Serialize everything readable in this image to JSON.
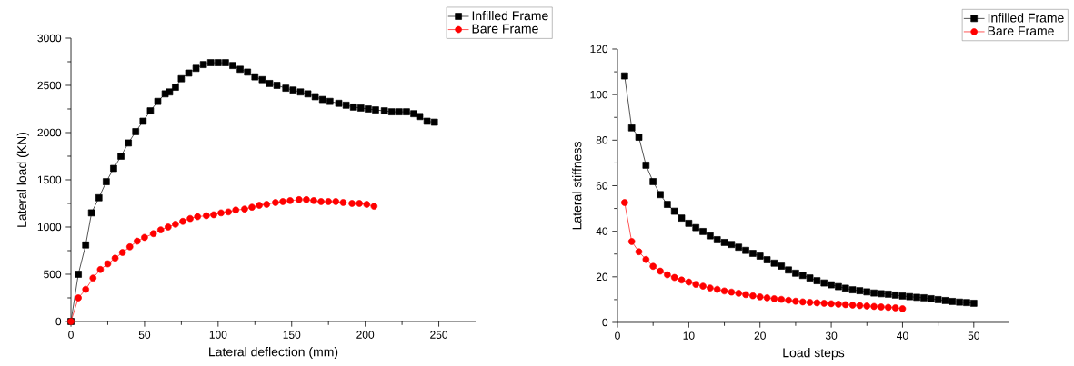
{
  "chart_data": [
    {
      "type": "line",
      "xlabel": "Lateral deflection (mm)",
      "ylabel": "Lateral load (KN)",
      "xlim": [
        0,
        275
      ],
      "ylim": [
        0,
        3000
      ],
      "xticks": [
        0,
        50,
        100,
        150,
        200,
        250
      ],
      "yticks": [
        0,
        500,
        1000,
        1500,
        2000,
        2500,
        3000
      ],
      "legend": "top right",
      "grid": false,
      "series": [
        {
          "name": "Infilled Frame",
          "color": "#000000",
          "marker": "square",
          "x": [
            0,
            5,
            10,
            14,
            19,
            24,
            29,
            34,
            39,
            44,
            49,
            54,
            59,
            64,
            67,
            71,
            75,
            80,
            85,
            90,
            95,
            100,
            105,
            110,
            115,
            120,
            125,
            130,
            135,
            140,
            146,
            151,
            156,
            161,
            166,
            171,
            176,
            182,
            187,
            192,
            197,
            202,
            207,
            213,
            218,
            223,
            228,
            233,
            237,
            242,
            247
          ],
          "values": [
            0,
            500,
            810,
            1150,
            1310,
            1480,
            1620,
            1750,
            1890,
            2010,
            2120,
            2230,
            2330,
            2410,
            2430,
            2480,
            2570,
            2630,
            2680,
            2720,
            2740,
            2740,
            2740,
            2710,
            2670,
            2640,
            2590,
            2560,
            2520,
            2500,
            2470,
            2450,
            2430,
            2410,
            2380,
            2350,
            2330,
            2310,
            2290,
            2270,
            2260,
            2250,
            2240,
            2230,
            2220,
            2220,
            2220,
            2200,
            2170,
            2120,
            2110
          ]
        },
        {
          "name": "Bare Frame",
          "color": "#ff0000",
          "marker": "circle",
          "x": [
            0,
            5,
            10,
            15,
            20,
            25,
            30,
            35,
            40,
            45,
            50,
            56,
            61,
            66,
            71,
            76,
            81,
            86,
            92,
            97,
            102,
            107,
            112,
            118,
            123,
            128,
            133,
            139,
            144,
            149,
            155,
            160,
            165,
            170,
            175,
            180,
            185,
            191,
            196,
            201,
            206
          ],
          "values": [
            0,
            250,
            340,
            460,
            550,
            610,
            670,
            730,
            790,
            850,
            890,
            930,
            970,
            1000,
            1030,
            1060,
            1090,
            1110,
            1120,
            1130,
            1150,
            1160,
            1180,
            1190,
            1210,
            1230,
            1240,
            1260,
            1270,
            1280,
            1290,
            1290,
            1280,
            1270,
            1270,
            1270,
            1260,
            1250,
            1250,
            1240,
            1220
          ]
        }
      ]
    },
    {
      "type": "line",
      "xlabel": "Load steps",
      "ylabel": "Lateral stiffness",
      "xlim": [
        0,
        55
      ],
      "ylim": [
        0,
        120
      ],
      "xticks": [
        0,
        10,
        20,
        30,
        40,
        50
      ],
      "yticks": [
        0,
        20,
        40,
        60,
        80,
        100,
        120
      ],
      "legend": "top right",
      "grid": false,
      "series": [
        {
          "name": "Infilled Frame",
          "color": "#000000",
          "marker": "square",
          "x": [
            1,
            2,
            3,
            4,
            5,
            6,
            7,
            8,
            9,
            10,
            11,
            12,
            13,
            14,
            15,
            16,
            17,
            18,
            19,
            20,
            21,
            22,
            23,
            24,
            25,
            26,
            27,
            28,
            29,
            30,
            31,
            32,
            33,
            34,
            35,
            36,
            37,
            38,
            39,
            40,
            41,
            42,
            43,
            44,
            45,
            46,
            47,
            48,
            49,
            50
          ],
          "values": [
            108.2,
            85.4,
            81.3,
            69,
            61.8,
            56.1,
            51.8,
            48.8,
            45.8,
            43.5,
            41.6,
            39.9,
            38,
            36.3,
            35.1,
            34.2,
            33,
            31.6,
            30.3,
            29.1,
            27.5,
            26,
            24.7,
            23,
            21.6,
            20.6,
            19.5,
            18.3,
            17.3,
            16.5,
            15.7,
            15,
            14.3,
            13.9,
            13.4,
            12.9,
            12.6,
            12.4,
            12,
            11.6,
            11.3,
            11,
            10.8,
            10.4,
            10,
            9.6,
            9.2,
            8.9,
            8.7,
            8.4
          ]
        },
        {
          "name": "Bare Frame",
          "color": "#ff0000",
          "marker": "circle",
          "x": [
            1,
            2,
            3,
            4,
            5,
            6,
            7,
            8,
            9,
            10,
            11,
            12,
            13,
            14,
            15,
            16,
            17,
            18,
            19,
            20,
            21,
            22,
            23,
            24,
            25,
            26,
            27,
            28,
            29,
            30,
            31,
            32,
            33,
            34,
            35,
            36,
            37,
            38,
            39,
            40
          ],
          "values": [
            52.6,
            35.5,
            31,
            27.6,
            24.6,
            22.5,
            20.9,
            19.7,
            18.6,
            17.7,
            16.7,
            15.9,
            15.1,
            14.5,
            13.8,
            13.3,
            12.8,
            12.2,
            11.7,
            11.2,
            10.8,
            10.4,
            10.1,
            9.7,
            9.3,
            9,
            8.8,
            8.6,
            8.4,
            8.2,
            8,
            7.8,
            7.6,
            7.4,
            7.2,
            7,
            6.8,
            6.6,
            6.4,
            6
          ]
        }
      ]
    }
  ]
}
